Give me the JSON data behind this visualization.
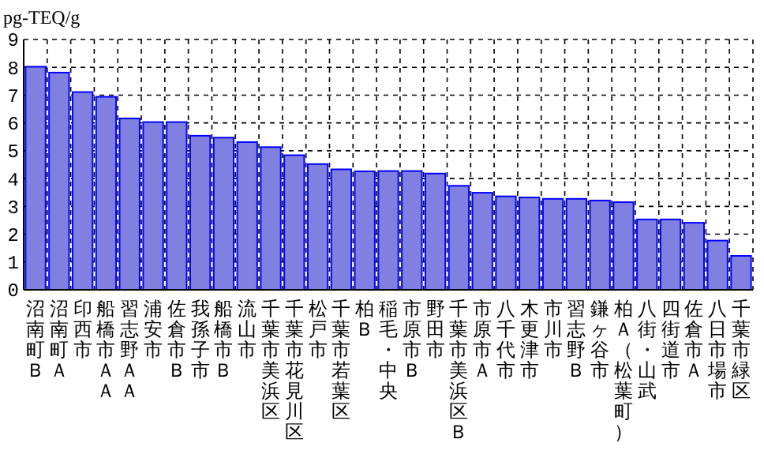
{
  "chart_data": {
    "type": "bar",
    "ylabel": "pg-TEQ/g",
    "categories": [
      "沼南町Ｂ",
      "沼南町Ａ",
      "印西市",
      "船橋市ＡＡ",
      "習志野ＡＡ",
      "浦安市",
      "佐倉市Ｂ",
      "我孫子市",
      "船橋市Ｂ",
      "流山市",
      "千葉市美浜区",
      "千葉市花見川区",
      "松戸市",
      "千葉市若葉区",
      "柏Ｂ",
      "稲毛・中央",
      "市原市Ｂ",
      "野田市",
      "千葉市美浜区Ｂ",
      "市原市Ａ",
      "八千代市",
      "木更津市",
      "市川市",
      "習志野Ｂ",
      "鎌ヶ谷市",
      "柏Ａ（松葉町）",
      "八街・山武",
      "四街道市",
      "佐倉市Ａ",
      "八日市場市",
      "千葉市緑区"
    ],
    "values": [
      8.02,
      7.81,
      7.11,
      6.94,
      6.16,
      6.03,
      6.03,
      5.54,
      5.47,
      5.31,
      5.13,
      4.84,
      4.52,
      4.33,
      4.26,
      4.27,
      4.27,
      4.18,
      3.74,
      3.49,
      3.36,
      3.32,
      3.27,
      3.27,
      3.21,
      3.15,
      2.53,
      2.53,
      2.41,
      1.77,
      1.22
    ],
    "color": "#8080e0",
    "ylim": [
      0,
      9
    ],
    "yticks": [
      0,
      1,
      2,
      3,
      4,
      5,
      6,
      7,
      8,
      9
    ],
    "grid": true
  }
}
